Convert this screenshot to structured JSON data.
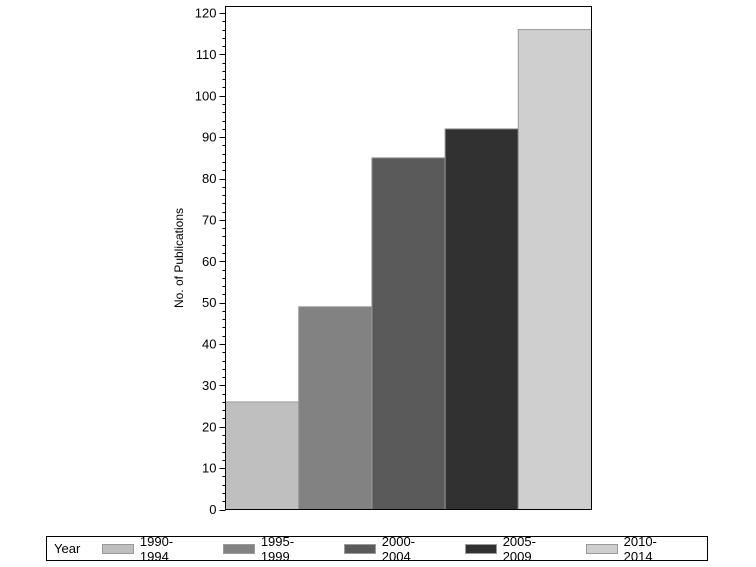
{
  "chart_data": {
    "type": "bar",
    "title": "",
    "xlabel": "",
    "ylabel": "No. of Publications",
    "categories": [
      "1990-1994",
      "1995-1999",
      "2000-2004",
      "2005-2009",
      "2010-2014"
    ],
    "values": [
      26,
      49,
      85,
      92,
      116
    ],
    "colors": [
      "#bfbfbf",
      "#828282",
      "#5a5a5a",
      "#313131",
      "#cfcfcf"
    ],
    "ylim": [
      0,
      120
    ],
    "yticks": [
      0,
      10,
      20,
      30,
      40,
      50,
      60,
      70,
      80,
      90,
      100,
      110,
      120
    ],
    "minor_ticks_per_major": 5,
    "grid": false,
    "legend": {
      "title": "Year",
      "position": "bottom",
      "entries": [
        "1990-1994",
        "1995-1999",
        "2000-2004",
        "2005-2009",
        "2010-2014"
      ]
    }
  },
  "axis": {
    "ylabel": "No. of Publications"
  },
  "legend": {
    "title": "Year"
  }
}
